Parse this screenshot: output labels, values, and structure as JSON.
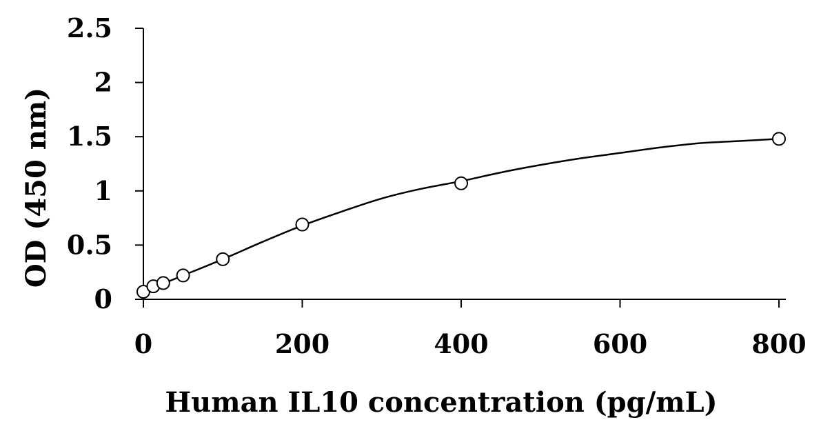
{
  "chart_data": {
    "type": "scatter",
    "title": "",
    "xlabel": "Human IL10 concentration (pg/mL)",
    "ylabel": "OD (450 nm)",
    "xlim": [
      0,
      800
    ],
    "ylim": [
      0,
      2.5
    ],
    "x_ticks": [
      "0",
      "200",
      "400",
      "600",
      "800"
    ],
    "y_ticks": [
      "0",
      "0.5",
      "1",
      "1.5",
      "2",
      "2.5"
    ],
    "grid": false,
    "legend": "none",
    "series": [
      {
        "marker": "open-circle",
        "points": [
          {
            "x": 0,
            "y": 0.07
          },
          {
            "x": 12.5,
            "y": 0.12
          },
          {
            "x": 25,
            "y": 0.15
          },
          {
            "x": 50,
            "y": 0.22
          },
          {
            "x": 100,
            "y": 0.37
          },
          {
            "x": 200,
            "y": 0.69
          },
          {
            "x": 400,
            "y": 1.07
          },
          {
            "x": 800,
            "y": 1.48
          }
        ]
      }
    ],
    "fit_curve": {
      "kind": "smooth-trendline",
      "points": [
        {
          "x": 0,
          "y": 0.07
        },
        {
          "x": 50,
          "y": 0.22
        },
        {
          "x": 100,
          "y": 0.37
        },
        {
          "x": 150,
          "y": 0.53
        },
        {
          "x": 200,
          "y": 0.68
        },
        {
          "x": 250,
          "y": 0.81
        },
        {
          "x": 300,
          "y": 0.93
        },
        {
          "x": 350,
          "y": 1.02
        },
        {
          "x": 400,
          "y": 1.09
        },
        {
          "x": 450,
          "y": 1.17
        },
        {
          "x": 500,
          "y": 1.24
        },
        {
          "x": 550,
          "y": 1.3
        },
        {
          "x": 600,
          "y": 1.35
        },
        {
          "x": 650,
          "y": 1.4
        },
        {
          "x": 700,
          "y": 1.44
        },
        {
          "x": 750,
          "y": 1.46
        },
        {
          "x": 800,
          "y": 1.48
        }
      ]
    },
    "colors": {
      "marker": "#000000",
      "line": "#000000",
      "axis": "#000000"
    }
  }
}
